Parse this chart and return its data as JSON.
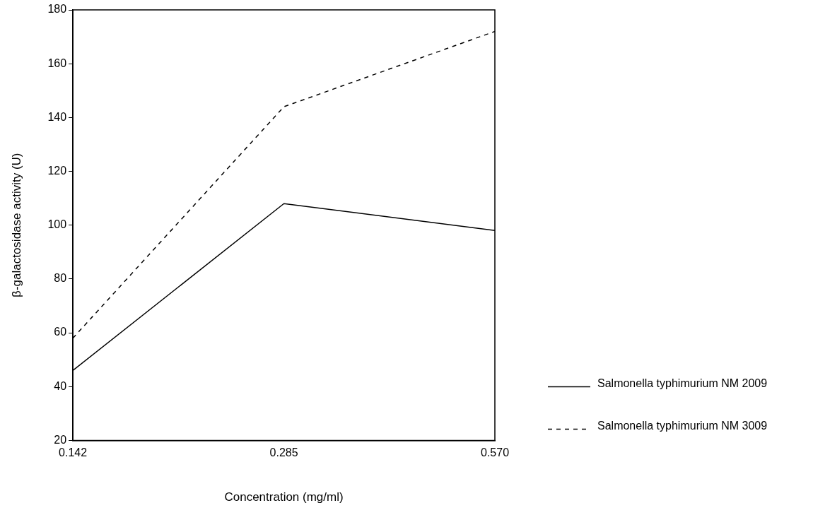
{
  "chart_data": {
    "type": "line",
    "xlabel": "Concentration (mg/ml)",
    "ylabel": "β-galactosidase activity (U)",
    "categories": [
      "0.142",
      "0.285",
      "0.570"
    ],
    "series": [
      {
        "name": "Salmonella typhimurium NM 2009",
        "color": "#000000",
        "line_style": "solid",
        "values": [
          46,
          108,
          98
        ]
      },
      {
        "name": "Salmonella typhimurium NM 3009",
        "color": "#000000",
        "line_style": "dashed",
        "values": [
          58,
          144,
          172
        ]
      }
    ],
    "ylim": [
      20,
      180
    ],
    "yticks": [
      20,
      40,
      60,
      80,
      100,
      120,
      140,
      160,
      180
    ],
    "grid": false,
    "legend": "bottom right",
    "marker": "none"
  }
}
